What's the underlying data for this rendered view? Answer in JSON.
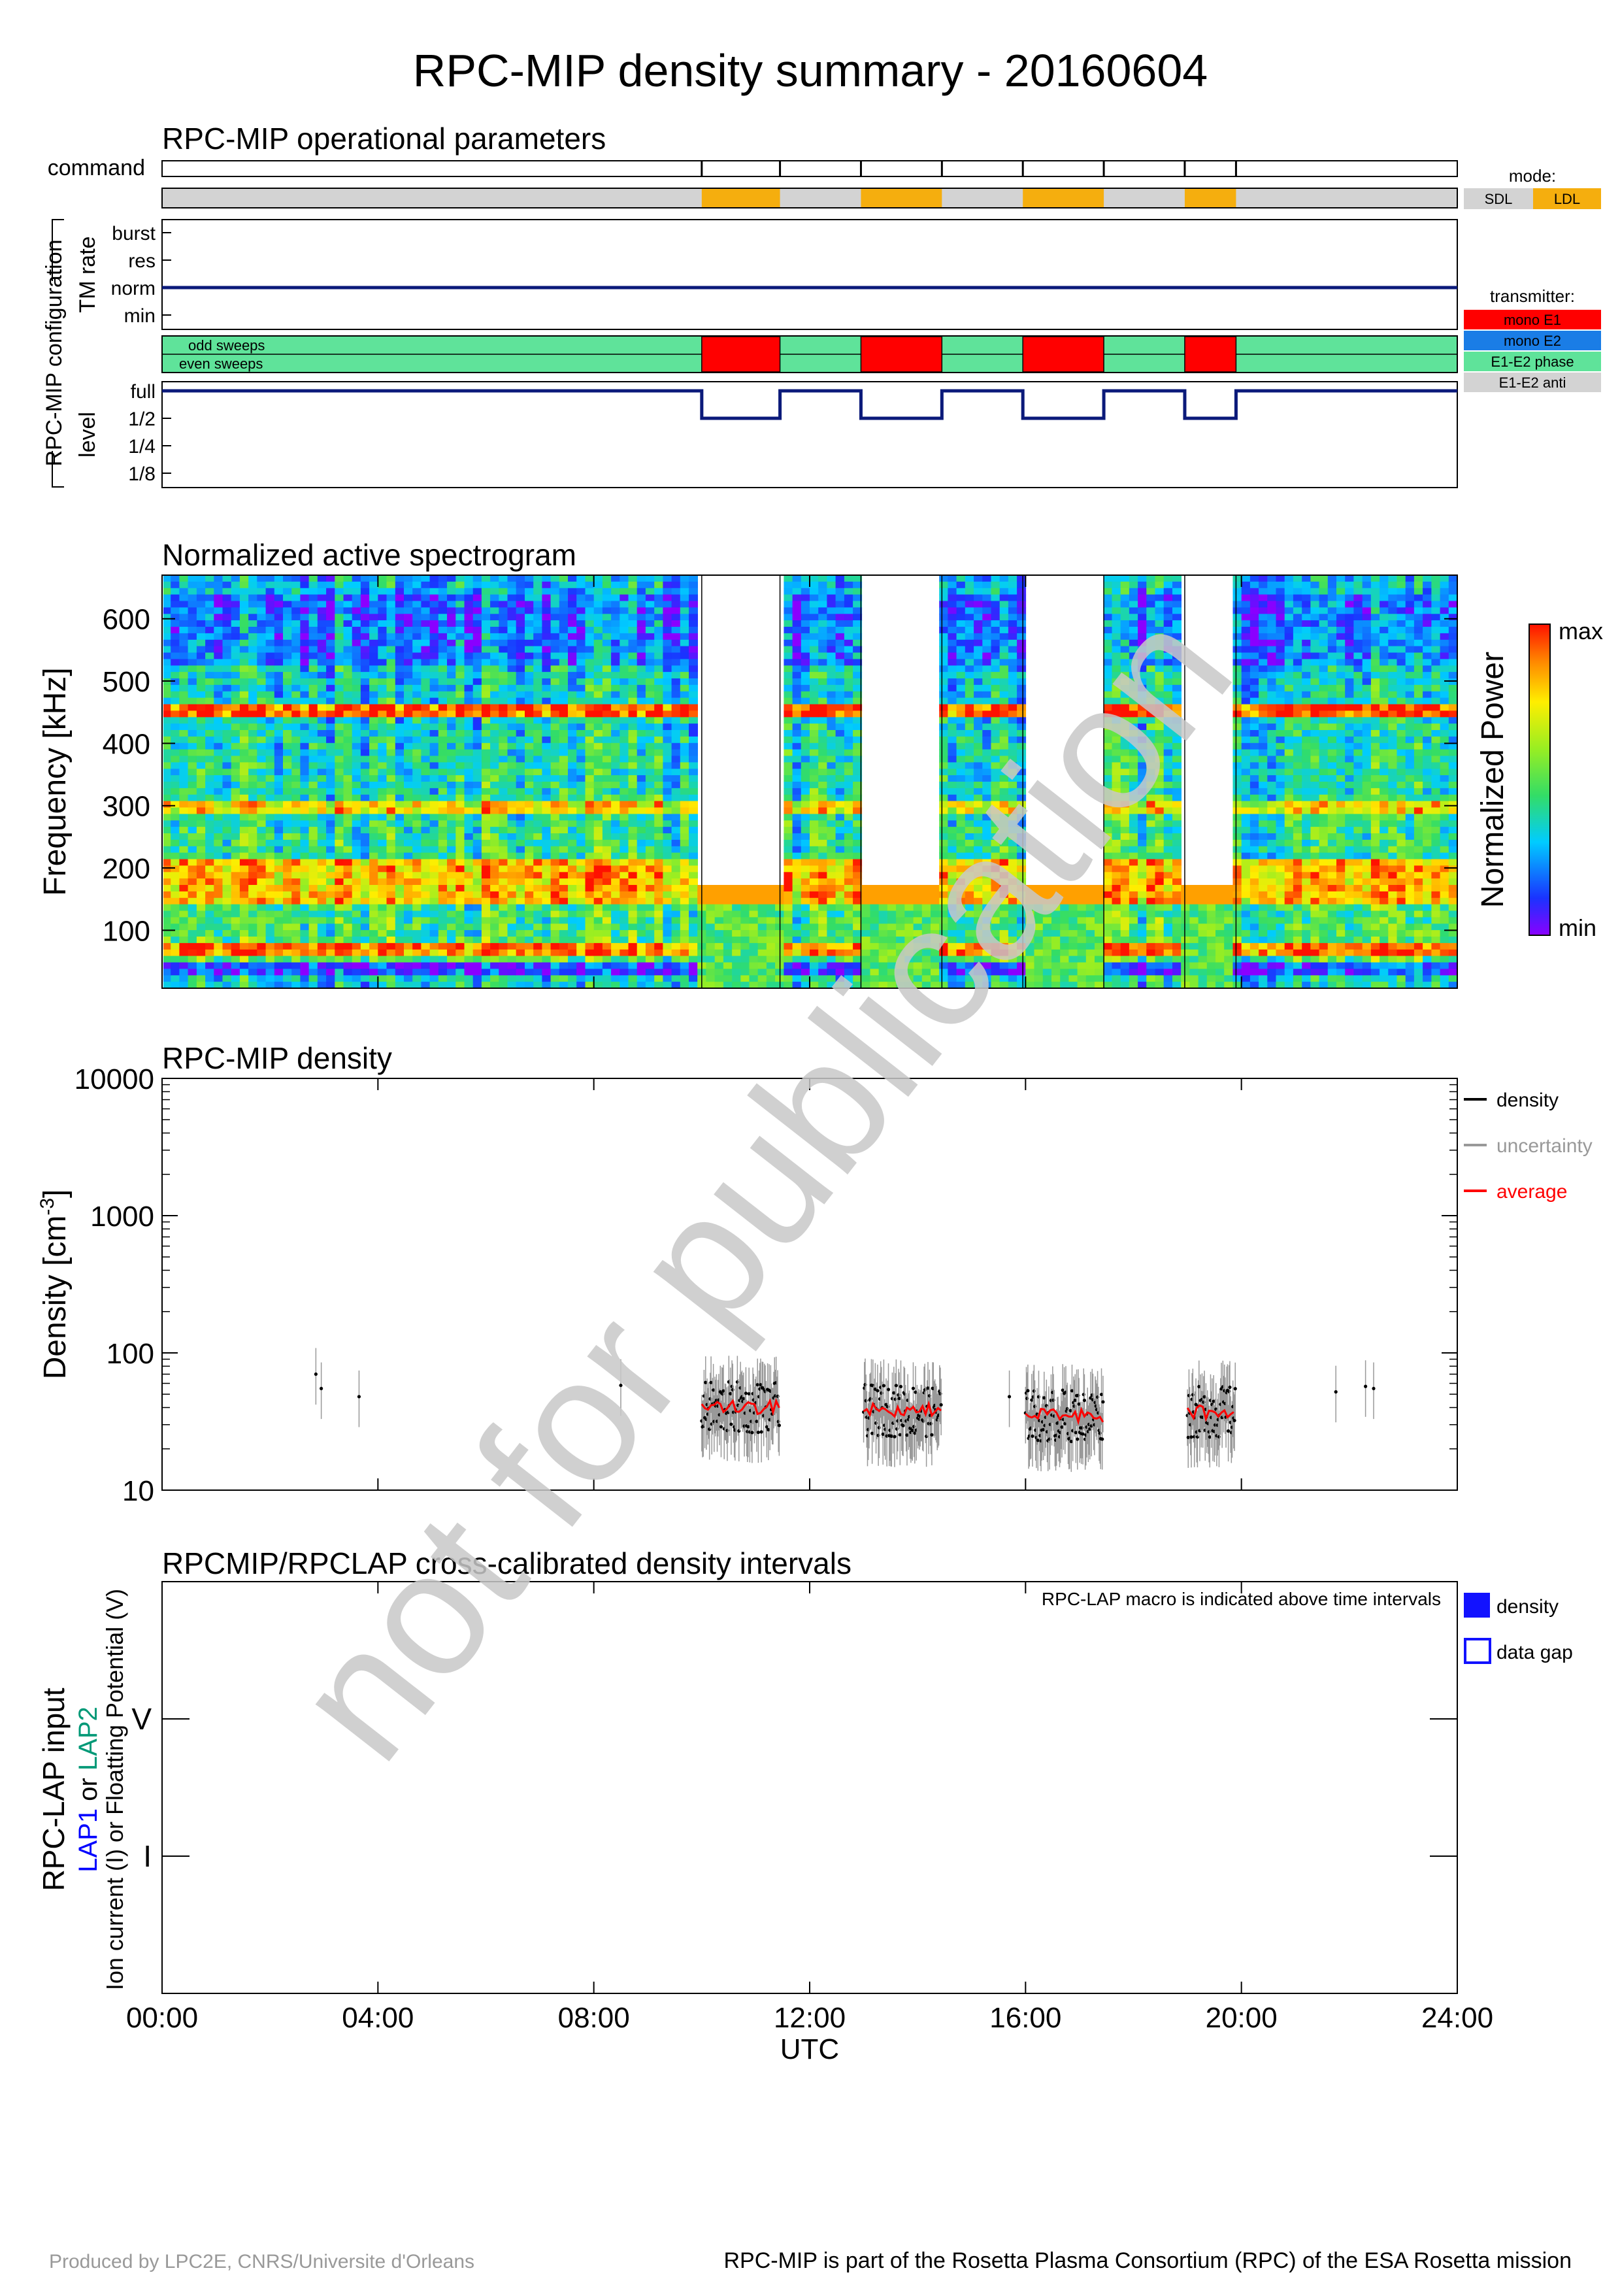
{
  "page": {
    "title": "RPC-MIP density summary - 20160604",
    "watermark": "not for publication",
    "footer_left": "Produced by LPC2E, CNRS/Universite d'Orleans",
    "footer_right": "RPC-MIP is part of the Rosetta Plasma Consortium (RPC) of the ESA Rosetta mission"
  },
  "colors": {
    "sdl": "#d3d3d3",
    "ldl": "#f5ae0e",
    "mono_e1": "#ff0000",
    "mono_e2": "#1a7de6",
    "e1e2_phase": "#5fe39a",
    "e1e2_anti": "#d3d3d3",
    "trace": "#0b1a7a",
    "lap1": "#0000ff",
    "lap2": "#009977",
    "density": "#000000",
    "uncertainty": "#999999",
    "average": "#ff0000",
    "density_box": "#1212ff"
  },
  "chart_data": [
    {
      "id": "operational",
      "type": "timeline",
      "title": "RPC-MIP operational parameters",
      "command_label": "command",
      "group_label": "RPC-MIP configuration",
      "tm_label": "TM rate",
      "tm_levels": [
        "burst",
        "res",
        "norm",
        "min"
      ],
      "tm_value": "norm",
      "level_label": "level",
      "level_levels": [
        "full",
        "1/2",
        "1/4",
        "1/8"
      ],
      "sweep_labels": [
        "odd sweeps",
        "even sweeps"
      ],
      "commands_h": [
        10.0,
        11.45,
        12.95,
        14.45,
        15.95,
        17.45,
        18.95,
        19.9
      ],
      "ldl_intervals": [
        [
          10.0,
          11.45
        ],
        [
          12.95,
          14.45
        ],
        [
          15.95,
          17.45
        ],
        [
          18.95,
          19.9
        ]
      ],
      "mono_e1_intervals": [
        [
          10.0,
          11.45
        ],
        [
          12.95,
          14.45
        ],
        [
          15.95,
          17.45
        ],
        [
          18.95,
          19.9
        ]
      ],
      "level_half_intervals": [
        [
          10.0,
          11.45
        ],
        [
          12.95,
          14.45
        ],
        [
          15.95,
          17.45
        ],
        [
          18.95,
          19.9
        ]
      ],
      "mode_legend": {
        "title": "mode:",
        "items": [
          "SDL",
          "LDL"
        ]
      },
      "transmitter_legend": {
        "title": "transmitter:",
        "items": [
          "mono E1",
          "mono E2",
          "E1-E2 phase",
          "E1-E2 anti"
        ]
      }
    },
    {
      "id": "spectrogram",
      "type": "heatmap",
      "title": "Normalized active spectrogram",
      "ylabel": "Frequency [kHz]",
      "yticks": [
        "100",
        "200",
        "300",
        "400",
        "500",
        "600"
      ],
      "ylim": [
        7,
        670
      ],
      "colorbar_label": "Normalized Power",
      "colorbar_max": "max",
      "colorbar_min": "min",
      "gaps_h": [
        [
          10.0,
          11.45
        ],
        [
          12.95,
          14.45
        ],
        [
          15.95,
          17.45
        ],
        [
          18.95,
          19.9
        ]
      ],
      "gap_floor_khz": 170
    },
    {
      "id": "density",
      "type": "scatter",
      "title": "RPC-MIP density",
      "ylabel": "Density [cm",
      "ylabel_sup": "-3",
      "ylabel_end": "]",
      "yscale": "log",
      "ylim": [
        10,
        10000
      ],
      "yticks": [
        "10",
        "100",
        "1000",
        "10000"
      ],
      "legend": [
        "density",
        "uncertainty",
        "average"
      ],
      "sparse_points": [
        [
          2.85,
          70
        ],
        [
          2.95,
          55
        ],
        [
          3.65,
          48
        ],
        [
          8.5,
          58
        ],
        [
          15.7,
          48
        ],
        [
          21.75,
          52
        ],
        [
          22.3,
          57
        ],
        [
          22.45,
          55
        ]
      ],
      "clusters": [
        {
          "x": [
            10.0,
            11.45
          ],
          "mean": 40
        },
        {
          "x": [
            13.0,
            14.45
          ],
          "mean": 38
        },
        {
          "x": [
            16.0,
            17.45
          ],
          "mean": 35
        },
        {
          "x": [
            19.0,
            19.9
          ],
          "mean": 37
        }
      ]
    },
    {
      "id": "lap",
      "type": "timeline",
      "title": "RPCMIP/RPCLAP cross-calibrated density intervals",
      "note": "RPC-LAP macro is indicated above time intervals",
      "ylabel_main": "RPC-LAP input",
      "ylabel_lap1": "LAP1",
      "ylabel_or": " or ",
      "ylabel_lap2": "LAP2",
      "ylabel_sub": "Ion current (I) or Floatting Potential (V)",
      "yticks": [
        "V",
        "I"
      ],
      "legend": [
        "density",
        "data gap"
      ]
    }
  ],
  "xaxis": {
    "label": "UTC",
    "range_h": [
      0,
      24
    ],
    "ticks": [
      "00:00",
      "04:00",
      "08:00",
      "12:00",
      "16:00",
      "20:00",
      "24:00"
    ]
  }
}
